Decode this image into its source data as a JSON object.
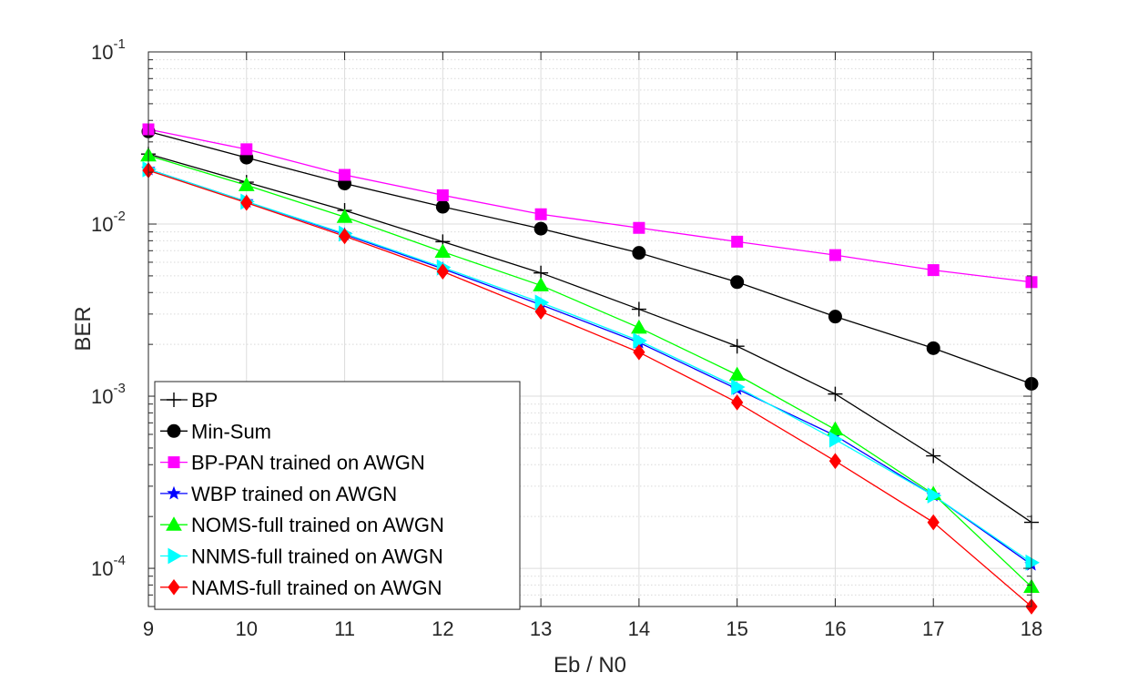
{
  "chart_data": {
    "type": "line",
    "xlabel": "Eb / N0",
    "ylabel": "BER",
    "xlim": [
      9,
      18
    ],
    "ylim": [
      6e-05,
      0.1
    ],
    "yscale": "log",
    "grid": true,
    "minor_grid": true,
    "legend_position": "bottom-left",
    "x_ticks": [
      "9",
      "10",
      "11",
      "12",
      "13",
      "14",
      "15",
      "16",
      "17",
      "18"
    ],
    "y_ticks": [
      {
        "base": "10",
        "exp": "-1",
        "value": 0.1
      },
      {
        "base": "10",
        "exp": "-2",
        "value": 0.01
      },
      {
        "base": "10",
        "exp": "-3",
        "value": 0.001
      },
      {
        "base": "10",
        "exp": "-4",
        "value": 0.0001
      }
    ],
    "x": [
      9,
      10,
      11,
      12,
      13,
      14,
      15,
      16,
      17,
      18
    ],
    "series": [
      {
        "name": "BP",
        "color": "#000000",
        "marker": "plus",
        "values": [
          0.0255,
          0.0175,
          0.012,
          0.0079,
          0.0052,
          0.0032,
          0.00195,
          0.00103,
          0.00045,
          0.000185
        ]
      },
      {
        "name": "Min-Sum",
        "color": "#000000",
        "marker": "circle",
        "values": [
          0.0345,
          0.0243,
          0.0172,
          0.0126,
          0.0094,
          0.0068,
          0.0046,
          0.0029,
          0.0019,
          0.00118
        ]
      },
      {
        "name": "BP-PAN trained on AWGN",
        "color": "#ff00ff",
        "marker": "square",
        "values": [
          0.0355,
          0.0272,
          0.0193,
          0.0147,
          0.0114,
          0.0095,
          0.0079,
          0.0066,
          0.0054,
          0.0046
        ]
      },
      {
        "name": "WBP trained on AWGN",
        "color": "#0000ff",
        "marker": "star",
        "values": [
          0.0208,
          0.0135,
          0.0087,
          0.0055,
          0.0034,
          0.00205,
          0.0011,
          0.00059,
          0.000265,
          0.000105
        ]
      },
      {
        "name": "NOMS-full trained on AWGN",
        "color": "#00ff00",
        "marker": "triangle-up",
        "values": [
          0.025,
          0.0168,
          0.011,
          0.0069,
          0.0044,
          0.0025,
          0.00133,
          0.00064,
          0.00027,
          7.8e-05
        ]
      },
      {
        "name": "NNMS-full trained on AWGN",
        "color": "#00ffff",
        "marker": "triangle-right",
        "values": [
          0.0208,
          0.0135,
          0.0088,
          0.0056,
          0.0035,
          0.0021,
          0.00113,
          0.00056,
          0.000265,
          0.000108
        ]
      },
      {
        "name": "NAMS-full trained on AWGN",
        "color": "#ff0000",
        "marker": "diamond",
        "values": [
          0.0205,
          0.0133,
          0.0085,
          0.0053,
          0.0031,
          0.0018,
          0.00092,
          0.00042,
          0.000185,
          6e-05
        ]
      }
    ]
  }
}
